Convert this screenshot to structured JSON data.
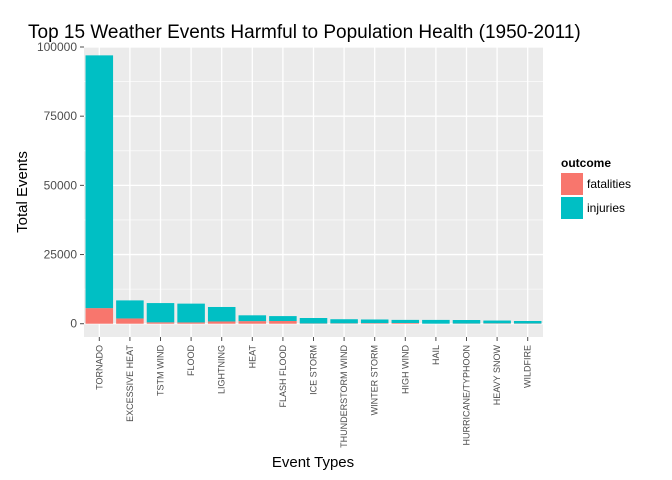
{
  "chart_data": {
    "type": "bar",
    "stacked": true,
    "title": "Top 15 Weather Events Harmful to Population Health (1950-2011)",
    "xlabel": "Event Types",
    "ylabel": "Total Events",
    "ylim": [
      -4800,
      100000
    ],
    "yticks": [
      0,
      25000,
      50000,
      75000,
      100000
    ],
    "yticklabels": [
      "0",
      "25000",
      "50000",
      "75000",
      "100000"
    ],
    "grid": true,
    "categories": [
      "TORNADO",
      "EXCESSIVE HEAT",
      "TSTM WIND",
      "FLOOD",
      "LIGHTNING",
      "HEAT",
      "FLASH FLOOD",
      "ICE STORM",
      "THUNDERSTORM WIND",
      "WINTER STORM",
      "HIGH WIND",
      "HAIL",
      "HURRICANE/TYPHOON",
      "HEAVY SNOW",
      "WILDFIRE"
    ],
    "series": [
      {
        "name": "fatalities",
        "color": "#f8766d",
        "values": [
          5633,
          1903,
          504,
          470,
          816,
          937,
          978,
          89,
          133,
          206,
          248,
          15,
          64,
          127,
          75
        ]
      },
      {
        "name": "injuries",
        "color": "#00bfc4",
        "values": [
          91346,
          6525,
          6957,
          6789,
          5230,
          2100,
          1777,
          1975,
          1488,
          1321,
          1137,
          1361,
          1275,
          1021,
          911
        ]
      }
    ],
    "legend": {
      "title": "outcome",
      "position": "right",
      "entries": [
        "fatalities",
        "injuries"
      ]
    },
    "panel_color": "#ebebeb",
    "grid_color": "#ffffff"
  }
}
